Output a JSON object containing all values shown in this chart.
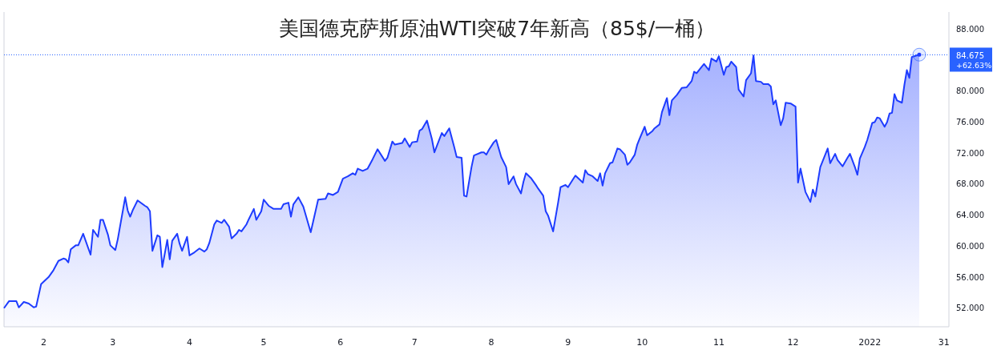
{
  "chart_data": {
    "type": "area",
    "title": "美国德克萨斯原油WTI突破7年新高（85$/一桶）",
    "x": [
      "2021-01-16",
      "2021-01-18",
      "2021-01-21",
      "2021-01-22",
      "2021-01-24",
      "2021-01-26",
      "2021-01-28",
      "2021-01-29",
      "2021-01-31",
      "2021-02-03",
      "2021-02-05",
      "2021-02-07",
      "2021-02-09",
      "2021-02-10",
      "2021-02-11",
      "2021-02-12",
      "2021-02-14",
      "2021-02-15",
      "2021-02-17",
      "2021-02-20",
      "2021-02-21",
      "2021-02-23",
      "2021-02-24",
      "2021-02-25",
      "2021-02-27",
      "2021-02-28",
      "2021-03-02",
      "2021-03-03",
      "2021-03-06",
      "2021-03-07",
      "2021-03-08",
      "2021-03-09",
      "2021-03-11",
      "2021-03-14",
      "2021-03-15",
      "2021-03-16",
      "2021-03-17",
      "2021-03-19",
      "2021-03-20",
      "2021-03-21",
      "2021-03-23",
      "2021-03-24",
      "2021-03-25",
      "2021-03-27",
      "2021-03-28",
      "2021-03-29",
      "2021-03-31",
      "2021-04-01",
      "2021-04-03",
      "2021-04-05",
      "2021-04-07",
      "2021-04-08",
      "2021-04-09",
      "2021-04-11",
      "2021-04-12",
      "2021-04-14",
      "2021-04-15",
      "2021-04-17",
      "2021-04-18",
      "2021-04-20",
      "2021-04-21",
      "2021-04-22",
      "2021-04-24",
      "2021-04-25",
      "2021-04-27",
      "2021-04-28",
      "2021-04-30",
      "2021-05-01",
      "2021-05-03",
      "2021-05-05",
      "2021-05-08",
      "2021-05-09",
      "2021-05-11",
      "2021-05-12",
      "2021-05-13",
      "2021-05-15",
      "2021-05-17",
      "2021-05-20",
      "2021-05-23",
      "2021-05-26",
      "2021-05-27",
      "2021-05-29",
      "2021-05-31",
      "2021-06-02",
      "2021-06-04",
      "2021-06-06",
      "2021-06-07",
      "2021-06-08",
      "2021-06-10",
      "2021-06-12",
      "2021-06-14",
      "2021-06-16",
      "2021-06-19",
      "2021-06-20",
      "2021-06-22",
      "2021-06-23",
      "2021-06-26",
      "2021-06-27",
      "2021-06-29",
      "2021-06-30",
      "2021-07-02",
      "2021-07-03",
      "2021-07-04",
      "2021-07-06",
      "2021-07-08",
      "2021-07-09",
      "2021-07-12",
      "2021-07-13",
      "2021-07-15",
      "2021-07-17",
      "2021-07-18",
      "2021-07-20",
      "2021-07-21",
      "2021-07-22",
      "2021-07-24",
      "2021-07-25",
      "2021-07-28",
      "2021-07-29",
      "2021-07-30",
      "2021-07-31",
      "2021-08-02",
      "2021-08-03",
      "2021-08-05",
      "2021-08-07",
      "2021-08-08",
      "2021-08-10",
      "2021-08-11",
      "2021-08-13",
      "2021-08-14",
      "2021-08-15",
      "2021-08-17",
      "2021-08-19",
      "2021-08-20",
      "2021-08-22",
      "2021-08-23",
      "2021-08-24",
      "2021-08-26",
      "2021-08-28",
      "2021-08-29",
      "2021-08-31",
      "2021-09-01",
      "2021-09-03",
      "2021-09-04",
      "2021-09-06",
      "2021-09-07",
      "2021-09-08",
      "2021-09-09",
      "2021-09-11",
      "2021-09-13",
      "2021-09-14",
      "2021-09-15",
      "2021-09-16",
      "2021-09-18",
      "2021-09-19",
      "2021-09-21",
      "2021-09-22",
      "2021-09-24",
      "2021-09-25",
      "2021-09-26",
      "2021-09-28",
      "2021-09-29",
      "2021-09-30",
      "2021-10-02",
      "2021-10-03",
      "2021-10-05",
      "2021-10-06",
      "2021-10-08",
      "2021-10-09",
      "2021-10-11",
      "2021-10-12",
      "2021-10-13",
      "2021-10-15",
      "2021-10-17",
      "2021-10-19",
      "2021-10-21",
      "2021-10-22",
      "2021-10-23",
      "2021-10-25",
      "2021-10-26",
      "2021-10-28",
      "2021-10-29",
      "2021-10-31",
      "2021-11-01",
      "2021-11-03",
      "2021-11-04",
      "2021-11-05",
      "2021-11-06",
      "2021-11-08",
      "2021-11-09",
      "2021-11-11",
      "2021-11-12",
      "2021-11-14",
      "2021-11-15",
      "2021-11-16",
      "2021-11-18",
      "2021-11-19",
      "2021-11-21",
      "2021-11-22",
      "2021-11-23",
      "2021-11-24",
      "2021-11-26",
      "2021-11-27",
      "2021-11-28",
      "2021-11-30",
      "2021-12-02",
      "2021-12-03",
      "2021-12-04",
      "2021-12-06",
      "2021-12-08",
      "2021-12-09",
      "2021-12-10",
      "2021-12-12",
      "2021-12-14",
      "2021-12-15",
      "2021-12-16",
      "2021-12-18",
      "2021-12-19",
      "2021-12-21",
      "2021-12-23",
      "2021-12-24",
      "2021-12-26",
      "2021-12-27",
      "2021-12-28",
      "2021-12-30",
      "2021-12-31",
      "2022-01-02",
      "2022-01-03",
      "2022-01-04",
      "2022-01-05",
      "2022-01-07",
      "2022-01-08",
      "2022-01-09",
      "2022-01-10",
      "2022-01-11",
      "2022-01-12",
      "2022-01-14",
      "2022-01-15",
      "2022-01-16",
      "2022-01-17",
      "2022-01-18",
      "2022-01-19",
      "2022-01-21"
    ],
    "series": [
      {
        "color": "#1e3cff",
        "values": [
          52.0,
          52.9,
          52.9,
          52.1,
          52.8,
          52.6,
          52.1,
          52.2,
          55.1,
          56.0,
          56.9,
          58.1,
          58.4,
          58.3,
          57.9,
          59.6,
          60.1,
          60.1,
          61.6,
          58.9,
          62.1,
          61.2,
          63.4,
          63.4,
          61.5,
          60.1,
          59.5,
          60.9,
          66.3,
          64.6,
          63.8,
          64.6,
          65.9,
          65.2,
          65.0,
          64.5,
          59.4,
          61.4,
          61.2,
          57.3,
          60.8,
          58.3,
          60.7,
          61.6,
          60.3,
          59.4,
          61.2,
          58.8,
          59.2,
          59.7,
          59.3,
          59.6,
          60.4,
          62.8,
          63.3,
          63.0,
          63.4,
          62.5,
          61.0,
          61.6,
          62.1,
          61.9,
          62.8,
          63.5,
          64.8,
          63.4,
          64.5,
          66.0,
          65.2,
          64.8,
          64.8,
          65.4,
          65.6,
          63.8,
          65.4,
          66.3,
          65.1,
          61.8,
          66.0,
          66.1,
          66.8,
          66.6,
          67.0,
          68.7,
          69.0,
          69.4,
          69.2,
          70.0,
          69.7,
          70.0,
          71.2,
          72.5,
          71.0,
          71.4,
          73.5,
          73.1,
          73.3,
          73.9,
          72.8,
          73.4,
          73.5,
          74.9,
          75.1,
          76.2,
          73.8,
          72.1,
          74.6,
          74.2,
          75.2,
          72.8,
          71.5,
          71.4,
          66.5,
          66.4,
          70.2,
          71.7,
          72.1,
          72.1,
          71.8,
          72.4,
          73.4,
          73.7,
          71.5,
          70.2,
          68.0,
          69.0,
          68.0,
          66.8,
          68.3,
          69.4,
          68.8,
          67.9,
          67.4,
          66.5,
          64.5,
          63.9,
          61.9,
          65.6,
          67.6,
          67.9,
          67.6,
          68.6,
          69.1,
          68.5,
          68.2,
          69.8,
          69.3,
          69.0,
          68.4,
          69.4,
          67.8,
          69.4,
          70.7,
          70.8,
          72.6,
          72.5,
          71.8,
          70.5,
          70.8,
          71.8,
          73.1,
          73.9,
          75.4,
          74.3,
          74.8,
          75.2,
          75.7,
          77.3,
          79.1,
          76.9,
          78.8,
          79.5,
          80.4,
          80.5,
          81.3,
          82.5,
          82.3,
          83.1,
          83.5,
          82.7,
          84.2,
          83.8,
          84.5,
          82.1,
          83.1,
          83.2,
          83.8,
          83.1,
          80.2,
          79.3,
          81.4,
          82.3,
          84.6,
          81.3,
          81.2,
          80.9,
          80.9,
          80.6,
          78.3,
          78.8,
          75.6,
          76.5,
          78.5,
          78.4,
          78.0,
          68.2,
          70.0,
          67.0,
          65.7,
          67.3,
          66.4,
          70.2,
          71.8,
          72.6,
          70.7,
          71.9,
          71.1,
          70.3,
          71.4,
          71.9,
          70.2,
          69.2,
          71.3,
          72.8,
          73.7,
          75.9,
          76.0,
          76.6,
          76.5,
          75.4,
          76.0,
          77.1,
          77.2,
          79.6,
          78.8,
          78.5,
          80.8,
          82.7,
          81.7,
          84.4,
          84.5,
          84.7
        ]
      }
    ],
    "xlim": [
      "2021-01-16",
      "2022-02-02"
    ],
    "xticks": [
      {
        "value": "2021-02-01",
        "label": "2"
      },
      {
        "value": "2021-03-01",
        "label": "3"
      },
      {
        "value": "2021-04-01",
        "label": "4"
      },
      {
        "value": "2021-05-01",
        "label": "5"
      },
      {
        "value": "2021-06-01",
        "label": "6"
      },
      {
        "value": "2021-07-01",
        "label": "7"
      },
      {
        "value": "2021-08-01",
        "label": "8"
      },
      {
        "value": "2021-09-01",
        "label": "9"
      },
      {
        "value": "2021-10-01",
        "label": "10"
      },
      {
        "value": "2021-11-01",
        "label": "11"
      },
      {
        "value": "2021-12-01",
        "label": "12"
      },
      {
        "value": "2022-01-01",
        "label": "2022"
      },
      {
        "value": "2022-01-31",
        "label": "31"
      }
    ],
    "ylim": [
      49.6,
      90.2
    ],
    "yticks": [
      {
        "value": 52,
        "label": "52.000"
      },
      {
        "value": 56,
        "label": "56.000"
      },
      {
        "value": 60,
        "label": "60.000"
      },
      {
        "value": 64,
        "label": "64.000"
      },
      {
        "value": 68,
        "label": "68.000"
      },
      {
        "value": 72,
        "label": "72.000"
      },
      {
        "value": 76,
        "label": "76.000"
      },
      {
        "value": 80,
        "label": "80.000"
      },
      {
        "value": 88,
        "label": "88.000"
      }
    ],
    "ref_lines": [
      {
        "axis": "y",
        "value": 84.675,
        "label": "84.675",
        "color": "#2962ff",
        "line_style": "dotted"
      }
    ],
    "annotations": [
      "+62.63%"
    ],
    "grid": false
  }
}
